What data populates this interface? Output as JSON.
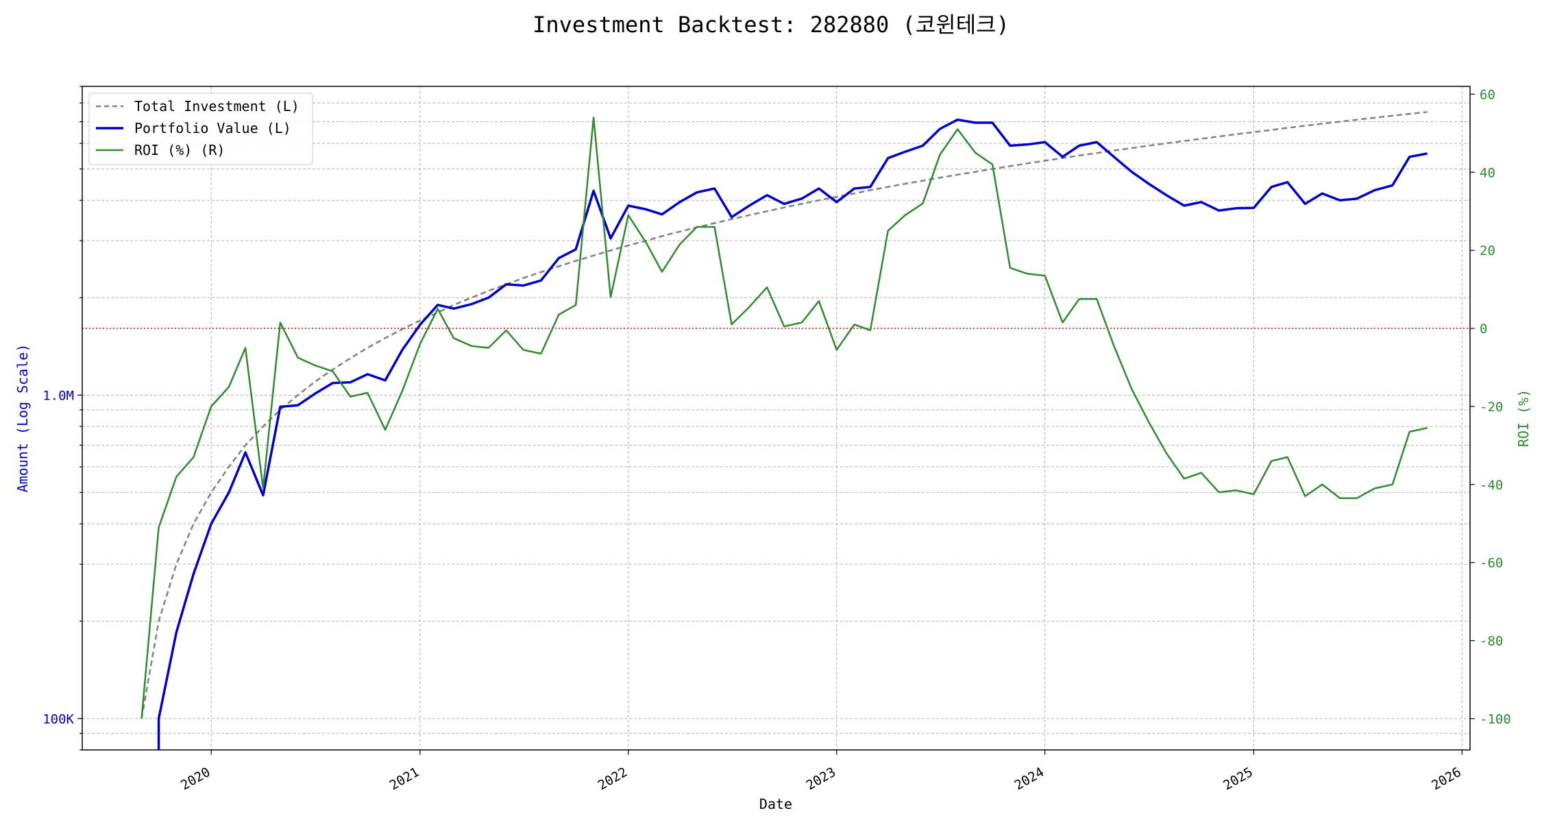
{
  "chart_data": {
    "type": "line",
    "title": "Investment Backtest: 282880 (코윈테크)",
    "xlabel": "Date",
    "ylabel_left": "Amount (Log Scale)",
    "ylabel_right": "ROI (%)",
    "left_axis": {
      "scale": "log",
      "ylim": [
        80000,
        9000000
      ],
      "ticks": [
        {
          "v": 100000,
          "label": "100K"
        },
        {
          "v": 1000000,
          "label": "1.0M"
        }
      ]
    },
    "right_axis": {
      "ylim": [
        -108,
        62
      ],
      "ticks": [
        60,
        40,
        20,
        0,
        -20,
        -40,
        -60,
        -80,
        -100
      ]
    },
    "x_ticks": [
      "2020",
      "2021",
      "2022",
      "2023",
      "2024",
      "2025",
      "2026"
    ],
    "x_range": [
      "2019-05-20",
      "2026-01-15"
    ],
    "grid": true,
    "legend_position": "top-left",
    "zero_line": {
      "axis": "right",
      "value": 0,
      "color": "#cc0000"
    },
    "colors": {
      "investment": "#808080",
      "portfolio": "#0000cc",
      "roi": "#2e8b2e",
      "left_axis": "#0000cc",
      "right_axis": "#2e8b2e"
    },
    "series": [
      {
        "name": "Total Investment (L)",
        "axis": "left",
        "style": "dashed",
        "points": [
          [
            "2019-09-01",
            100000
          ],
          [
            "2019-10-01",
            200000
          ],
          [
            "2019-11-01",
            300000
          ],
          [
            "2019-12-01",
            400000
          ],
          [
            "2020-01-01",
            500000
          ],
          [
            "2020-02-01",
            600000
          ],
          [
            "2020-03-01",
            700000
          ],
          [
            "2020-04-01",
            800000
          ],
          [
            "2020-05-01",
            900000
          ],
          [
            "2020-06-01",
            1000000
          ],
          [
            "2020-07-01",
            1100000
          ],
          [
            "2020-08-01",
            1200000
          ],
          [
            "2020-09-01",
            1300000
          ],
          [
            "2020-10-01",
            1400000
          ],
          [
            "2020-11-01",
            1500000
          ],
          [
            "2020-12-01",
            1600000
          ],
          [
            "2021-01-01",
            1700000
          ],
          [
            "2021-02-01",
            1800000
          ],
          [
            "2021-03-01",
            1900000
          ],
          [
            "2021-04-01",
            2000000
          ],
          [
            "2021-05-01",
            2100000
          ],
          [
            "2021-06-01",
            2200000
          ],
          [
            "2021-07-01",
            2300000
          ],
          [
            "2021-08-01",
            2400000
          ],
          [
            "2021-09-01",
            2500000
          ],
          [
            "2021-10-01",
            2600000
          ],
          [
            "2021-11-01",
            2700000
          ],
          [
            "2021-12-01",
            2800000
          ],
          [
            "2022-01-01",
            2900000
          ],
          [
            "2022-02-01",
            3000000
          ],
          [
            "2022-03-01",
            3100000
          ],
          [
            "2022-04-01",
            3200000
          ],
          [
            "2022-05-01",
            3300000
          ],
          [
            "2022-06-01",
            3400000
          ],
          [
            "2022-07-01",
            3500000
          ],
          [
            "2022-08-01",
            3600000
          ],
          [
            "2022-09-01",
            3700000
          ],
          [
            "2022-10-01",
            3800000
          ],
          [
            "2022-11-01",
            3900000
          ],
          [
            "2022-12-01",
            4000000
          ],
          [
            "2023-01-01",
            4100000
          ],
          [
            "2023-02-01",
            4200000
          ],
          [
            "2023-03-01",
            4300000
          ],
          [
            "2023-04-01",
            4400000
          ],
          [
            "2023-05-01",
            4500000
          ],
          [
            "2023-06-01",
            4600000
          ],
          [
            "2023-07-01",
            4700000
          ],
          [
            "2023-08-01",
            4800000
          ],
          [
            "2023-09-01",
            4900000
          ],
          [
            "2023-10-01",
            5000000
          ],
          [
            "2023-11-01",
            5100000
          ],
          [
            "2023-12-01",
            5200000
          ],
          [
            "2024-01-01",
            5300000
          ],
          [
            "2024-02-01",
            5400000
          ],
          [
            "2024-03-01",
            5500000
          ],
          [
            "2024-04-01",
            5600000
          ],
          [
            "2024-05-01",
            5700000
          ],
          [
            "2024-06-01",
            5800000
          ],
          [
            "2024-07-01",
            5900000
          ],
          [
            "2024-08-01",
            6000000
          ],
          [
            "2024-09-01",
            6100000
          ],
          [
            "2024-10-01",
            6200000
          ],
          [
            "2024-11-01",
            6300000
          ],
          [
            "2024-12-01",
            6400000
          ],
          [
            "2025-01-01",
            6500000
          ],
          [
            "2025-02-01",
            6600000
          ],
          [
            "2025-03-01",
            6700000
          ],
          [
            "2025-04-01",
            6800000
          ],
          [
            "2025-05-01",
            6900000
          ],
          [
            "2025-06-01",
            7000000
          ],
          [
            "2025-07-01",
            7100000
          ],
          [
            "2025-08-01",
            7200000
          ],
          [
            "2025-09-01",
            7300000
          ],
          [
            "2025-10-01",
            7400000
          ],
          [
            "2025-11-01",
            7500000
          ]
        ]
      },
      {
        "name": "Portfolio Value (L)",
        "axis": "left",
        "style": "solid",
        "points": [
          [
            "2019-10-01",
            100000
          ],
          [
            "2019-11-01",
            185000
          ],
          [
            "2019-12-01",
            280000
          ],
          [
            "2020-01-01",
            400000
          ],
          [
            "2020-02-01",
            500000
          ],
          [
            "2020-03-01",
            665000
          ],
          [
            "2020-04-01",
            490000
          ],
          [
            "2020-05-01",
            920000
          ],
          [
            "2020-06-01",
            930000
          ],
          [
            "2020-07-01",
            1010000
          ],
          [
            "2020-08-01",
            1090000
          ],
          [
            "2020-09-01",
            1095000
          ],
          [
            "2020-10-01",
            1160000
          ],
          [
            "2020-11-01",
            1110000
          ],
          [
            "2020-12-01",
            1380000
          ],
          [
            "2021-01-01",
            1650000
          ],
          [
            "2021-02-01",
            1900000
          ],
          [
            "2021-03-01",
            1850000
          ],
          [
            "2021-04-01",
            1910000
          ],
          [
            "2021-05-01",
            2000000
          ],
          [
            "2021-06-01",
            2200000
          ],
          [
            "2021-07-01",
            2180000
          ],
          [
            "2021-08-01",
            2260000
          ],
          [
            "2021-09-01",
            2650000
          ],
          [
            "2021-10-01",
            2820000
          ],
          [
            "2021-11-01",
            4280000
          ],
          [
            "2021-12-01",
            3050000
          ],
          [
            "2022-01-01",
            3850000
          ],
          [
            "2022-02-01",
            3750000
          ],
          [
            "2022-03-01",
            3620000
          ],
          [
            "2022-04-01",
            3950000
          ],
          [
            "2022-05-01",
            4230000
          ],
          [
            "2022-06-01",
            4350000
          ],
          [
            "2022-07-01",
            3550000
          ],
          [
            "2022-08-01",
            3850000
          ],
          [
            "2022-09-01",
            4150000
          ],
          [
            "2022-10-01",
            3900000
          ],
          [
            "2022-11-01",
            4050000
          ],
          [
            "2022-12-01",
            4350000
          ],
          [
            "2023-01-01",
            3950000
          ],
          [
            "2023-02-01",
            4350000
          ],
          [
            "2023-03-01",
            4400000
          ],
          [
            "2023-04-01",
            5400000
          ],
          [
            "2023-05-01",
            5650000
          ],
          [
            "2023-06-01",
            5900000
          ],
          [
            "2023-07-01",
            6650000
          ],
          [
            "2023-08-01",
            7100000
          ],
          [
            "2023-09-01",
            6950000
          ],
          [
            "2023-10-01",
            6950000
          ],
          [
            "2023-11-01",
            5900000
          ],
          [
            "2023-12-01",
            5950000
          ],
          [
            "2024-01-01",
            6050000
          ],
          [
            "2024-02-01",
            5450000
          ],
          [
            "2024-03-01",
            5900000
          ],
          [
            "2024-04-01",
            6050000
          ],
          [
            "2024-05-01",
            5450000
          ],
          [
            "2024-06-01",
            4900000
          ],
          [
            "2024-07-01",
            4500000
          ],
          [
            "2024-08-01",
            4150000
          ],
          [
            "2024-09-01",
            3850000
          ],
          [
            "2024-10-01",
            3950000
          ],
          [
            "2024-11-01",
            3720000
          ],
          [
            "2024-12-01",
            3780000
          ],
          [
            "2025-01-01",
            3790000
          ],
          [
            "2025-02-01",
            4400000
          ],
          [
            "2025-03-01",
            4550000
          ],
          [
            "2025-04-01",
            3900000
          ],
          [
            "2025-05-01",
            4200000
          ],
          [
            "2025-06-01",
            4000000
          ],
          [
            "2025-07-01",
            4050000
          ],
          [
            "2025-08-01",
            4300000
          ],
          [
            "2025-09-01",
            4450000
          ],
          [
            "2025-10-01",
            5450000
          ],
          [
            "2025-11-01",
            5580000
          ]
        ]
      },
      {
        "name": "ROI (%) (R)",
        "axis": "right",
        "style": "solid",
        "points": [
          [
            "2019-09-01",
            -100
          ],
          [
            "2019-10-01",
            -51
          ],
          [
            "2019-11-01",
            -38
          ],
          [
            "2019-12-01",
            -33
          ],
          [
            "2020-01-01",
            -20
          ],
          [
            "2020-02-01",
            -15
          ],
          [
            "2020-03-01",
            -5
          ],
          [
            "2020-04-01",
            -41
          ],
          [
            "2020-05-01",
            1.5
          ],
          [
            "2020-06-01",
            -7.5
          ],
          [
            "2020-07-01",
            -9.5
          ],
          [
            "2020-08-01",
            -11
          ],
          [
            "2020-09-01",
            -17.5
          ],
          [
            "2020-10-01",
            -16.5
          ],
          [
            "2020-11-01",
            -26
          ],
          [
            "2020-12-01",
            -16
          ],
          [
            "2021-01-01",
            -4
          ],
          [
            "2021-02-01",
            5
          ],
          [
            "2021-03-01",
            -2.5
          ],
          [
            "2021-04-01",
            -4.5
          ],
          [
            "2021-05-01",
            -5
          ],
          [
            "2021-06-01",
            -0.5
          ],
          [
            "2021-07-01",
            -5.5
          ],
          [
            "2021-08-01",
            -6.5
          ],
          [
            "2021-09-01",
            3.5
          ],
          [
            "2021-10-01",
            6
          ],
          [
            "2021-11-01",
            54
          ],
          [
            "2021-12-01",
            8
          ],
          [
            "2022-01-01",
            29
          ],
          [
            "2022-02-01",
            22
          ],
          [
            "2022-03-01",
            14.5
          ],
          [
            "2022-04-01",
            21.5
          ],
          [
            "2022-05-01",
            26
          ],
          [
            "2022-06-01",
            26
          ],
          [
            "2022-07-01",
            1
          ],
          [
            "2022-08-01",
            5.5
          ],
          [
            "2022-09-01",
            10.5
          ],
          [
            "2022-10-01",
            0.5
          ],
          [
            "2022-11-01",
            1.5
          ],
          [
            "2022-12-01",
            7
          ],
          [
            "2023-01-01",
            -5.5
          ],
          [
            "2023-02-01",
            1
          ],
          [
            "2023-03-01",
            -0.5
          ],
          [
            "2023-04-01",
            25
          ],
          [
            "2023-05-01",
            29
          ],
          [
            "2023-06-01",
            32
          ],
          [
            "2023-07-01",
            44.5
          ],
          [
            "2023-08-01",
            51
          ],
          [
            "2023-09-01",
            45
          ],
          [
            "2023-10-01",
            42
          ],
          [
            "2023-11-01",
            15.5
          ],
          [
            "2023-12-01",
            14
          ],
          [
            "2024-01-01",
            13.5
          ],
          [
            "2024-02-01",
            1.5
          ],
          [
            "2024-03-01",
            7.5
          ],
          [
            "2024-04-01",
            7.5
          ],
          [
            "2024-05-01",
            -4.5
          ],
          [
            "2024-06-01",
            -15.5
          ],
          [
            "2024-07-01",
            -24
          ],
          [
            "2024-08-01",
            -32
          ],
          [
            "2024-09-01",
            -38.5
          ],
          [
            "2024-10-01",
            -37
          ],
          [
            "2024-11-01",
            -42
          ],
          [
            "2024-12-01",
            -41.5
          ],
          [
            "2025-01-01",
            -42.5
          ],
          [
            "2025-02-01",
            -34
          ],
          [
            "2025-03-01",
            -33
          ],
          [
            "2025-04-01",
            -43
          ],
          [
            "2025-05-01",
            -40
          ],
          [
            "2025-06-01",
            -43.5
          ],
          [
            "2025-07-01",
            -43.5
          ],
          [
            "2025-08-01",
            -41
          ],
          [
            "2025-09-01",
            -40
          ],
          [
            "2025-10-01",
            -26.5
          ],
          [
            "2025-11-01",
            -25.5
          ]
        ]
      }
    ]
  }
}
